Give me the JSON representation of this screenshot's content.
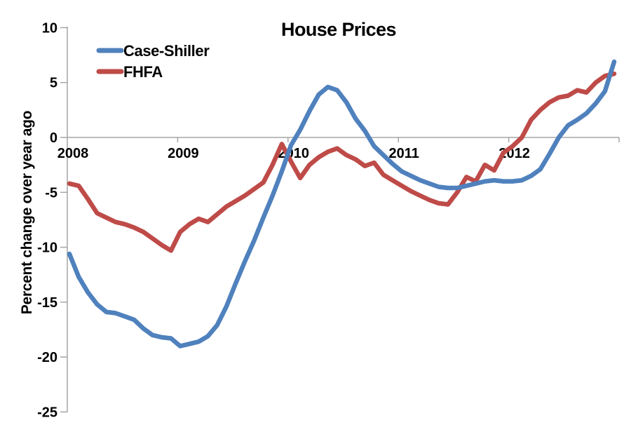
{
  "title": "House Prices",
  "chart_data": {
    "type": "line",
    "title": "House Prices",
    "ylabel": "Percent change over year ago",
    "x_interval": "monthly",
    "x_start": "2008-01",
    "x_end": "2012-12",
    "x_tick_labels": [
      "2008",
      "2009",
      "2010",
      "2011",
      "2012"
    ],
    "yticks": [
      10,
      5,
      0,
      -5,
      -10,
      -15,
      -20,
      -25
    ],
    "ylim": [
      -25,
      10
    ],
    "grid": "zero-line-only",
    "legend_position": "top-left-inside",
    "axis_color": "#A6A6A6",
    "text_color": "#000000",
    "series": [
      {
        "name": "Case-Shiller",
        "color": "#4F81BD",
        "values": [
          -10.6,
          -12.7,
          -14.1,
          -15.2,
          -15.9,
          -16.0,
          -16.3,
          -16.6,
          -17.4,
          -18.0,
          -18.2,
          -18.3,
          -19.0,
          -18.8,
          -18.6,
          -18.1,
          -17.1,
          -15.4,
          -13.3,
          -11.3,
          -9.4,
          -7.3,
          -5.3,
          -3.1,
          -0.7,
          0.7,
          2.4,
          3.9,
          4.6,
          4.3,
          3.2,
          1.7,
          0.6,
          -0.8,
          -1.6,
          -2.4,
          -3.1,
          -3.5,
          -3.9,
          -4.2,
          -4.5,
          -4.6,
          -4.6,
          -4.4,
          -4.2,
          -4.0,
          -3.9,
          -4.0,
          -4.0,
          -3.9,
          -3.5,
          -2.9,
          -1.5,
          0.0,
          1.1,
          1.6,
          2.2,
          3.1,
          4.2,
          6.9
        ]
      },
      {
        "name": "FHFA",
        "color": "#BE4B48",
        "values": [
          -4.2,
          -4.4,
          -5.6,
          -6.9,
          -7.3,
          -7.7,
          -7.9,
          -8.2,
          -8.6,
          -9.2,
          -9.8,
          -10.3,
          -8.6,
          -7.9,
          -7.4,
          -7.7,
          -7.0,
          -6.3,
          -5.8,
          -5.3,
          -4.7,
          -4.1,
          -2.5,
          -0.6,
          -2.2,
          -3.7,
          -2.5,
          -1.8,
          -1.3,
          -1.0,
          -1.6,
          -2.0,
          -2.6,
          -2.3,
          -3.4,
          -3.9,
          -4.4,
          -4.9,
          -5.3,
          -5.7,
          -6.0,
          -6.1,
          -5.0,
          -3.6,
          -4.0,
          -2.5,
          -3.0,
          -1.4,
          -0.8,
          0.0,
          1.6,
          2.5,
          3.2,
          3.65,
          3.8,
          4.3,
          4.1,
          5.0,
          5.6,
          5.8
        ]
      }
    ]
  }
}
